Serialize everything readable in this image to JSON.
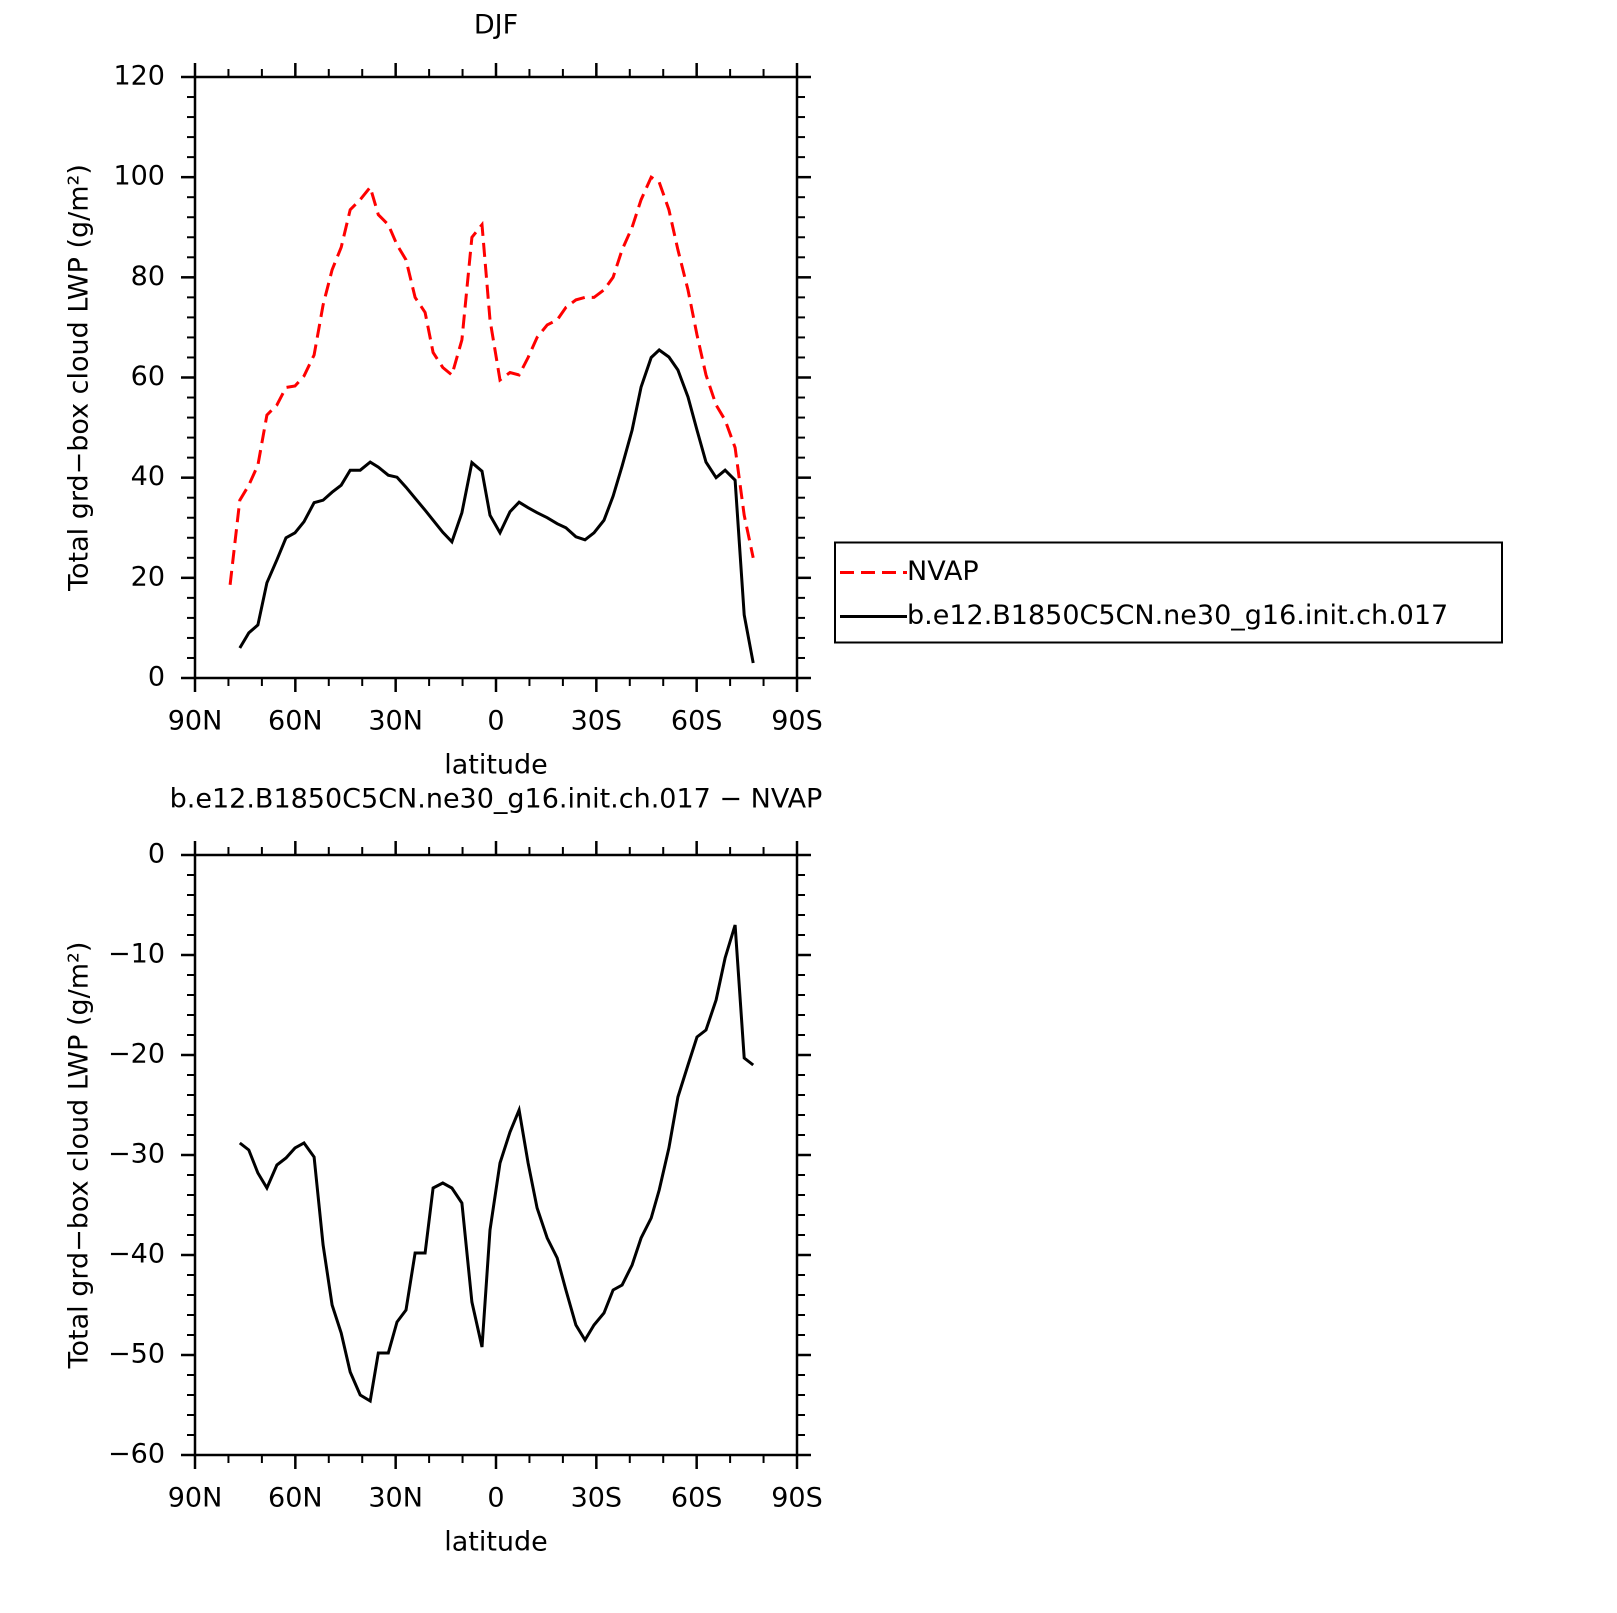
{
  "chart_data": [
    {
      "type": "line",
      "title": "DJF",
      "xlabel": "latitude",
      "ylabel": "Total grd−box cloud LWP (g/m²)",
      "x": [
        79.5,
        76.6,
        73.9,
        71.2,
        68.5,
        65.5,
        62.8,
        60.1,
        57.4,
        54.4,
        51.7,
        49.0,
        46.3,
        43.6,
        40.6,
        37.6,
        35.2,
        32.2,
        29.6,
        26.9,
        24.2,
        21.2,
        18.8,
        15.9,
        13.2,
        10.2,
        7.2,
        4.2,
        1.8,
        -1.2,
        -4.2,
        -6.9,
        -9.6,
        -12.3,
        -15.3,
        -18.3,
        -20.9,
        -23.9,
        -26.6,
        -29.3,
        -32.3,
        -35.0,
        -37.7,
        -40.7,
        -43.4,
        -46.4,
        -48.8,
        -51.7,
        -54.4,
        -57.4,
        -60.1,
        -62.8,
        -65.8,
        -68.5,
        -71.5,
        -74.2,
        -76.9
      ],
      "series": [
        {
          "name": "NVAP",
          "color": "#ff0000",
          "linestyle": "dashed",
          "values": [
            18.6,
            35.5,
            38.5,
            42.5,
            52.5,
            54.5,
            58,
            58.3,
            60.3,
            64.5,
            74.5,
            81.5,
            86,
            93.5,
            95.5,
            98,
            92.5,
            90.5,
            86.5,
            83.5,
            76,
            73,
            65,
            62,
            60.5,
            67.5,
            88,
            90.5,
            71.5,
            59.5,
            61,
            60.5,
            64,
            68,
            70.5,
            71.5,
            74,
            75.5,
            76,
            76,
            77.5,
            80,
            85.5,
            90,
            95.5,
            100,
            99,
            93.5,
            85.5,
            77.5,
            68.5,
            60.5,
            54.5,
            51.5,
            46,
            32.5,
            24
          ]
        },
        {
          "name": "b.e12.B1850C5CN.ne30_g16.init.ch.017",
          "color": "#000000",
          "linestyle": "solid",
          "values": [
            null,
            6,
            9,
            10.6,
            19,
            23.6,
            28,
            29,
            31.2,
            35,
            35.5,
            37.1,
            38.5,
            41.5,
            41.5,
            43.1,
            42.1,
            40.5,
            40.1,
            38.1,
            35.9,
            33.5,
            31.5,
            29.1,
            27.2,
            33,
            43,
            41.3,
            32.5,
            29,
            33.2,
            35.1,
            34,
            33,
            32,
            30.8,
            30,
            28.2,
            27.6,
            29,
            31.5,
            36.3,
            42.3,
            49.5,
            58.1,
            64,
            65.5,
            64.1,
            61.5,
            56.1,
            49.5,
            43.1,
            40,
            41.5,
            39.5,
            12.6,
            3
          ]
        }
      ],
      "xlim": [
        90,
        -90
      ],
      "xticks": [
        {
          "value": 90,
          "label": "90N"
        },
        {
          "value": 60,
          "label": "60N"
        },
        {
          "value": 30,
          "label": "30N"
        },
        0,
        {
          "value": -30,
          "label": "30S"
        },
        {
          "value": -60,
          "label": "60S"
        },
        {
          "value": -90,
          "label": "90S"
        }
      ],
      "ylim": [
        0,
        120
      ],
      "yticks": [
        0,
        20,
        40,
        60,
        80,
        100,
        120
      ],
      "legend": "right"
    },
    {
      "type": "line",
      "title": "b.e12.B1850C5CN.ne30_g16.init.ch.017 − NVAP",
      "xlabel": "latitude",
      "ylabel": "Total grd−box cloud LWP (g/m²)",
      "x": [
        76.6,
        73.9,
        71.2,
        68.5,
        65.5,
        62.8,
        60.1,
        57.4,
        54.4,
        51.7,
        49.0,
        46.3,
        43.6,
        40.6,
        37.6,
        35.2,
        32.2,
        29.6,
        26.9,
        24.2,
        21.2,
        18.8,
        15.9,
        13.2,
        10.2,
        7.2,
        4.2,
        1.8,
        -1.2,
        -4.2,
        -6.9,
        -9.6,
        -12.3,
        -15.3,
        -18.3,
        -20.9,
        -23.9,
        -26.6,
        -29.3,
        -32.3,
        -35.0,
        -37.7,
        -40.7,
        -43.4,
        -46.4,
        -48.8,
        -51.7,
        -54.4,
        -57.4,
        -60.1,
        -62.8,
        -65.8,
        -68.5,
        -71.5,
        -74.2,
        -76.9
      ],
      "values": [
        -28.8,
        -29.5,
        -31.8,
        -33.3,
        -31,
        -30.3,
        -29.3,
        -28.8,
        -30.2,
        -39,
        -45,
        -47.8,
        -51.7,
        -54,
        -54.6,
        -49.8,
        -49.8,
        -46.7,
        -45.5,
        -39.8,
        -39.8,
        -33.3,
        -32.8,
        -33.3,
        -34.8,
        -44.7,
        -49.2,
        -37.5,
        -30.8,
        -27.7,
        -25.5,
        -30.8,
        -35.3,
        -38.3,
        -40.3,
        -43.5,
        -47,
        -48.5,
        -47,
        -45.8,
        -43.5,
        -43,
        -41,
        -38.3,
        -36.3,
        -33.5,
        -29.3,
        -24.2,
        -21,
        -18.2,
        -17.5,
        -14.5,
        -10.3,
        -7,
        -20.3,
        -21
      ],
      "color": "#000000",
      "xlim": [
        90,
        -90
      ],
      "xticks": [
        {
          "value": 90,
          "label": "90N"
        },
        {
          "value": 60,
          "label": "60N"
        },
        {
          "value": 30,
          "label": "30N"
        },
        0,
        {
          "value": -30,
          "label": "30S"
        },
        {
          "value": -60,
          "label": "60S"
        },
        {
          "value": -90,
          "label": "90S"
        }
      ],
      "ylim": [
        -60,
        0
      ],
      "yticks": [
        {
          "value": -60,
          "label": "−60"
        },
        {
          "value": -50,
          "label": "−50"
        },
        {
          "value": -40,
          "label": "−40"
        },
        {
          "value": -30,
          "label": "−30"
        },
        {
          "value": -20,
          "label": "−20"
        },
        {
          "value": -10,
          "label": "−10"
        },
        0
      ]
    }
  ]
}
